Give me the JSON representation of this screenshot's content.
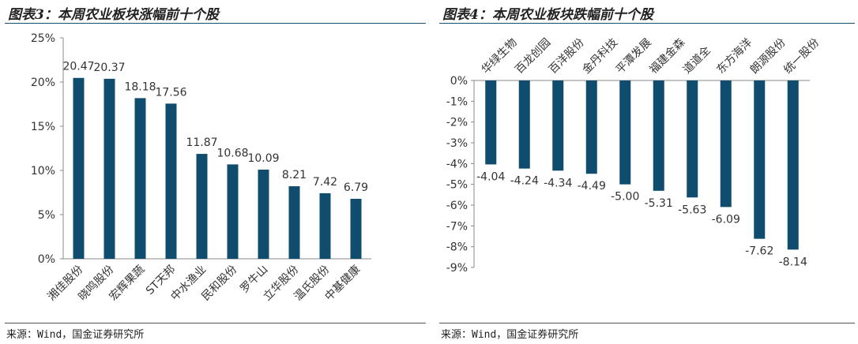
{
  "chart_data": [
    {
      "type": "bar",
      "title": "图表3：本周农业板块涨幅前十个股",
      "source": "来源：Wind，国金证券研究所",
      "categories": [
        "湘佳股份",
        "晓鸣股份",
        "宏辉果蔬",
        "ST天邦",
        "中水渔业",
        "民和股份",
        "罗牛山",
        "立华股份",
        "温氏股份",
        "中基健康"
      ],
      "values": [
        20.47,
        20.37,
        18.18,
        17.56,
        11.87,
        10.68,
        10.09,
        8.21,
        7.42,
        6.79
      ],
      "value_labels": [
        "20.47",
        "20.37",
        "18.18",
        "17.56",
        "11.87",
        "10.68",
        "10.09",
        "8.21",
        "7.42",
        "6.79"
      ],
      "ylim": [
        0,
        25
      ],
      "yticks": [
        "0%",
        "5%",
        "10%",
        "15%",
        "20%",
        "25%"
      ],
      "xlabel": "",
      "ylabel": "",
      "grid": false,
      "color": "#0f4c6e"
    },
    {
      "type": "bar",
      "title": "图表4：本周农业板块跌幅前十个股",
      "source": "来源：Wind，国金证券研究所",
      "categories": [
        "华绿生物",
        "百龙创园",
        "百洋股份",
        "金丹科技",
        "平潭发展",
        "福建金森",
        "道道全",
        "东方海洋",
        "朗源股份",
        "统一股份"
      ],
      "values": [
        -4.04,
        -4.24,
        -4.34,
        -4.49,
        -5.0,
        -5.31,
        -5.63,
        -6.09,
        -7.62,
        -8.14
      ],
      "value_labels": [
        "-4.04",
        "-4.24",
        "-4.34",
        "-4.49",
        "-5.00",
        "-5.31",
        "-5.63",
        "-6.09",
        "-7.62",
        "-8.14"
      ],
      "ylim": [
        -9,
        0
      ],
      "yticks": [
        "0%",
        "-1%",
        "-2%",
        "-3%",
        "-4%",
        "-5%",
        "-6%",
        "-7%",
        "-8%",
        "-9%"
      ],
      "xlabel": "",
      "ylabel": "",
      "grid": false,
      "color": "#0f4c6e"
    }
  ]
}
